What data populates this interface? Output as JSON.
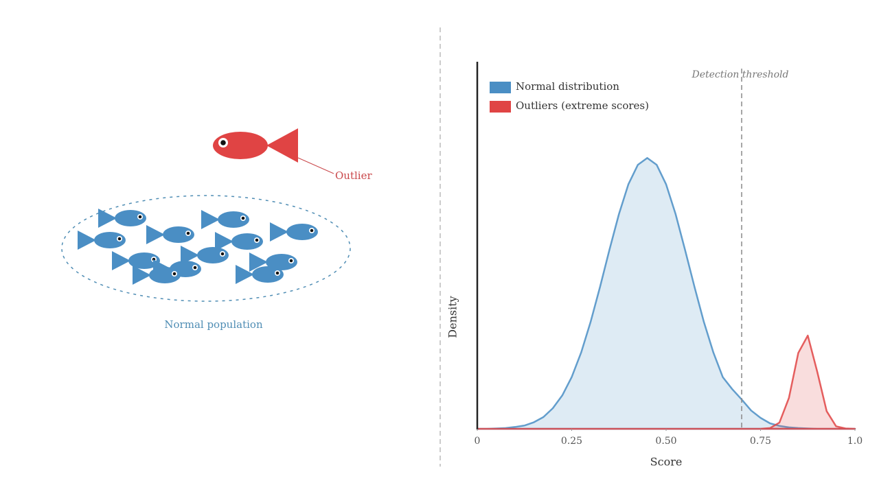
{
  "diagram": {
    "outlier_label": "Outlier",
    "population_label": "Normal population"
  },
  "chart_data": {
    "type": "area",
    "xlabel": "Score",
    "ylabel": "Density",
    "x": [
      0,
      0.025,
      0.05,
      0.075,
      0.1,
      0.125,
      0.15,
      0.175,
      0.2,
      0.225,
      0.25,
      0.275,
      0.3,
      0.325,
      0.35,
      0.375,
      0.4,
      0.425,
      0.45,
      0.475,
      0.5,
      0.525,
      0.55,
      0.575,
      0.6,
      0.625,
      0.65,
      0.675,
      0.7,
      0.725,
      0.75,
      0.775,
      0.8,
      0.825,
      0.85,
      0.875,
      0.9,
      0.925,
      0.95,
      0.975,
      1
    ],
    "series": [
      {
        "name": "Normal distribution",
        "color": "#4a8ec4",
        "values": [
          0,
          0,
          0.001,
          0.002,
          0.005,
          0.009,
          0.018,
          0.032,
          0.056,
          0.091,
          0.141,
          0.208,
          0.291,
          0.387,
          0.488,
          0.585,
          0.666,
          0.719,
          0.738,
          0.719,
          0.666,
          0.585,
          0.488,
          0.387,
          0.291,
          0.208,
          0.141,
          0.108,
          0.08,
          0.05,
          0.03,
          0.015,
          0.008,
          0.004,
          0.002,
          0.001,
          0,
          0,
          0,
          0,
          0
        ]
      },
      {
        "name": "Outliers (extreme scores)",
        "color": "#e04444",
        "values": [
          0,
          0,
          0,
          0,
          0,
          0,
          0,
          0,
          0,
          0,
          0,
          0,
          0,
          0,
          0,
          0,
          0,
          0,
          0,
          0,
          0,
          0,
          0,
          0,
          0,
          0,
          0,
          0,
          0,
          0,
          0,
          0.002,
          0.017,
          0.084,
          0.207,
          0.254,
          0.156,
          0.048,
          0.007,
          0.001,
          0
        ]
      }
    ],
    "xlim": [
      0,
      1
    ],
    "ylim": [
      0,
      1
    ],
    "xticks": [
      0,
      0.25,
      {
        "value": 0.5,
        "label": "0.50"
      },
      0.75,
      {
        "value": 1,
        "label": "1.0"
      }
    ],
    "threshold": {
      "value": 0.7,
      "label": "Detection threshold"
    },
    "legend": "top-left"
  }
}
